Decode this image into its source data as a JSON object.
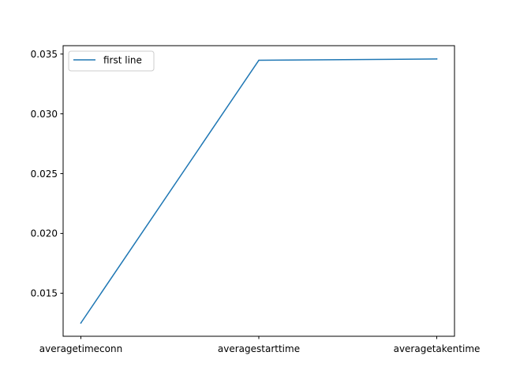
{
  "chart_data": {
    "type": "line",
    "title": "",
    "xlabel": "",
    "ylabel": "",
    "categories": [
      "averagetimeconn",
      "averagestarttime",
      "averagetakentime"
    ],
    "series": [
      {
        "name": "first line",
        "color": "#1f77b4",
        "values": [
          0.01251,
          0.03448,
          0.03459
        ]
      }
    ],
    "ylim": [
      0.0114,
      0.0357
    ],
    "yticks": [
      0.015,
      0.02,
      0.025,
      0.03,
      0.035
    ],
    "ytick_labels": [
      "0.015",
      "0.020",
      "0.025",
      "0.030",
      "0.035"
    ],
    "grid": false,
    "legend_position": "top-left"
  }
}
